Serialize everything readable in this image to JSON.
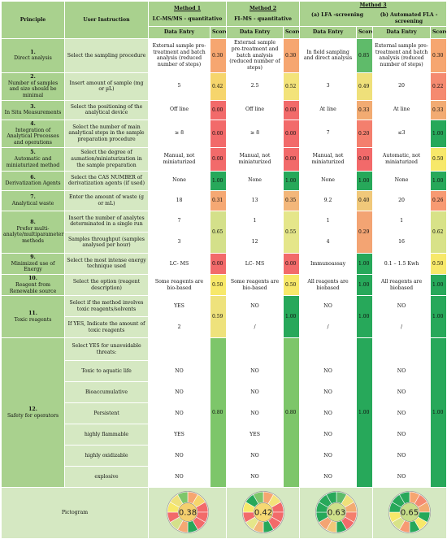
{
  "header": {
    "principle": "Principle",
    "user_instruction": "User Instruction",
    "methods": [
      {
        "title": "Method 1",
        "subtitle": "LC-MS/MS - quantitative"
      },
      {
        "title": "Method 2",
        "subtitle": "FI–MS - quantitative"
      },
      {
        "title": "Method 3",
        "subtitle": "(a) LFA -screening"
      },
      {
        "title": "",
        "subtitle": "(b) Automated FLA - screening"
      }
    ],
    "data_entry": "Data Entry",
    "score": "Score"
  },
  "colors": {
    "c030": "#f6a670",
    "c042": "#f6d56c",
    "c052": "#f3e37a",
    "c049": "#efe07a",
    "c022": "#f58a70",
    "c000": "#f26a6a",
    "c033": "#f2ab72",
    "c020": "#f47f6e",
    "c100": "#27a85a",
    "c050": "#f7e86a",
    "c031": "#f5a873",
    "c035": "#f3b77a",
    "c040": "#f0c87a",
    "c026": "#f79a72",
    "c065": "#d4e08a",
    "c055": "#e5e68a",
    "c029": "#f3a473",
    "c062": "#d8e288",
    "c059": "#eee27c",
    "c085": "#5fbb6a",
    "c080": "#7dc66a"
  },
  "rows": [
    {
      "num": "1.",
      "principle": "Direct analysis",
      "instruction": "Select the sampling procedure",
      "m1": "External sample pre-treatment and batch analysis (reduced number of steps)",
      "s1": "0.30",
      "m2": "External sample pre-treatment and batch analysis (reduced number of steps)",
      "s2": "0.30",
      "m3a": "In field sampling and direct analysis",
      "s3a": "0.85",
      "m3b": "External sample pre-treatment and batch analysis (reduced number of steps)",
      "s3b": "0.30"
    },
    {
      "num": "2.",
      "principle": "Number of samples and size should be minimal",
      "instruction": "Insert amount of sample (mg or µL)",
      "m1": "5",
      "s1": "0.42",
      "m2": "2.5",
      "s2": "0.52",
      "m3a": "3",
      "s3a": "0.49",
      "m3b": "20",
      "s3b": "0.22"
    },
    {
      "num": "3.",
      "principle": "In Situ Measurements",
      "instruction": "Select the positioning of the analytical device",
      "m1": "Off line",
      "s1": "0.00",
      "m2": "Off line",
      "s2": "0.00",
      "m3a": "At line",
      "s3a": "0.33",
      "m3b": "At line",
      "s3b": "0.33"
    },
    {
      "num": "4.",
      "principle": "Integration of Analytical Processes and operations",
      "instruction": "Select the number of main analytical steps in the sample preparation procedure",
      "m1": "≥ 8",
      "s1": "0.00",
      "m2": "≥ 8",
      "s2": "0.00",
      "m3a": "7",
      "s3a": "0.20",
      "m3b": "≤3",
      "s3b": "1.00"
    },
    {
      "num": "5.",
      "principle": "Automatic and miniaturized method",
      "instruction": "Select the degree of aumation/miniaturization in the sample preparation",
      "m1": "Manual, not miniaturized",
      "s1": "0.00",
      "m2": "Manual, not miniaturized",
      "s2": "0.00",
      "m3a": "Manual, not miniaturized",
      "s3a": "0.00",
      "m3b": "Automatic, not miniaturized",
      "s3b": "0.50"
    },
    {
      "num": "6.",
      "principle": "Derivatization Agents",
      "instruction": "Select the CAS NUMBER of derivatization agents (if used)",
      "m1": "None",
      "s1": "1.00",
      "m2": "None",
      "s2": "1.00",
      "m3a": "None",
      "s3a": "1.00",
      "m3b": "None",
      "s3b": "1.00"
    },
    {
      "num": "7.",
      "principle": "Analytical waste",
      "instruction": "Enter the amount of waste (g or mL)",
      "m1": "18",
      "s1": "0.31",
      "m2": "13",
      "s2": "0.35",
      "m3a": "9.2",
      "s3a": "0.40",
      "m3b": "20",
      "s3b": "0.26"
    }
  ],
  "row8": {
    "num": "8.",
    "principle": "Prefer multi-analyte/multiparameter methods",
    "instr_a": "Insert the number of analytes determinated in a single run",
    "instr_b": "Samples throughput (samples analysed per hour)",
    "m1a": "7",
    "m1b": "3",
    "s1": "0.65",
    "m2a": "1",
    "m2b": "12",
    "s2": "0.55",
    "m3aa": "1",
    "m3ab": "4",
    "s3a": "0.29",
    "m3ba": "1",
    "m3bb": "16",
    "s3b": "0.62"
  },
  "row9": {
    "num": "9.",
    "principle": "Minimized use of Energy",
    "instruction": "Select the most intense energy technique used",
    "m1": "LC- MS",
    "s1": "0.00",
    "m2": "LC- MS",
    "s2": "0.00",
    "m3a": "Immunoassay",
    "s3a": "1.00",
    "m3b": "0.1 – 1.5 Kwh",
    "s3b": "0.50"
  },
  "row10": {
    "num": "10.",
    "principle": "Reagent from Renewable source",
    "instruction": "Select the option (reagent description)",
    "m1": "Some reagents are bio-based",
    "s1": "0.50",
    "m2": "Some reagents are bio-based",
    "s2": "0.50",
    "m3a": "All reagents are biobased",
    "s3a": "1.00",
    "m3b": "All reagents are biobased",
    "s3b": "1.00"
  },
  "row11": {
    "num": "11.",
    "principle": "Toxic reagents",
    "instr_a": "Select if the method involves toxic reagents/solvents",
    "instr_b": "If YES, Indicate the amount of toxic reagents",
    "m1a": "YES",
    "m1b": "2",
    "s1": "0.59",
    "m2a": "NO",
    "m2b": "/",
    "s2": "1.00",
    "m3aa": "NO",
    "m3ab": "/",
    "s3a": "1.00",
    "m3ba": "NO",
    "m3bb": "/",
    "s3b": "1.00"
  },
  "row12": {
    "num": "12.",
    "principle": "Safety for operators",
    "intro": "Select YES for unavoidable threats:",
    "s1": "0.80",
    "s2": "0.80",
    "s3a": "1.00",
    "s3b": "1.00",
    "items": [
      {
        "label": "Toxic to aquatic life",
        "m1": "NO",
        "m2": "NO",
        "m3a": "NO",
        "m3b": "NO"
      },
      {
        "label": "Bioaccumulative",
        "m1": "NO",
        "m2": "NO",
        "m3a": "NO",
        "m3b": "NO"
      },
      {
        "label": "Persistent",
        "m1": "NO",
        "m2": "NO",
        "m3a": "NO",
        "m3b": "NO"
      },
      {
        "label": "highly flammable",
        "m1": "YES",
        "m2": "YES",
        "m3a": "NO",
        "m3b": "NO"
      },
      {
        "label": "highly oxidizable",
        "m1": "NO",
        "m2": "NO",
        "m3a": "NO",
        "m3b": "NO"
      },
      {
        "label": "explosive",
        "m1": "NO",
        "m2": "NO",
        "m3a": "NO",
        "m3b": "NO"
      }
    ]
  },
  "pictogram": {
    "label": "Pictogram",
    "scores": [
      "0.38",
      "0.42",
      "0.63",
      "0.65"
    ],
    "center_colors": [
      "#f4cf6e",
      "#f6d873",
      "#cfe08a",
      "#c7dd89"
    ],
    "segments": [
      [
        "#f6a670",
        "#f6d56c",
        "#f26a6a",
        "#f26a6a",
        "#f26a6a",
        "#27a85a",
        "#f5a873",
        "#d4e08a",
        "#f26a6a",
        "#f7e86a",
        "#eee27c",
        "#7dc66a"
      ],
      [
        "#f6a670",
        "#f3e37a",
        "#f26a6a",
        "#f26a6a",
        "#f26a6a",
        "#27a85a",
        "#f3b77a",
        "#e5e68a",
        "#f26a6a",
        "#f7e86a",
        "#27a85a",
        "#7dc66a"
      ],
      [
        "#5fbb6a",
        "#efe07a",
        "#f2ab72",
        "#f47f6e",
        "#f26a6a",
        "#27a85a",
        "#f0c87a",
        "#f3a473",
        "#27a85a",
        "#27a85a",
        "#27a85a",
        "#27a85a"
      ],
      [
        "#f6a670",
        "#f58a70",
        "#f2ab72",
        "#27a85a",
        "#f7e86a",
        "#27a85a",
        "#f79a72",
        "#d8e288",
        "#f7e86a",
        "#27a85a",
        "#27a85a",
        "#27a85a"
      ]
    ]
  }
}
